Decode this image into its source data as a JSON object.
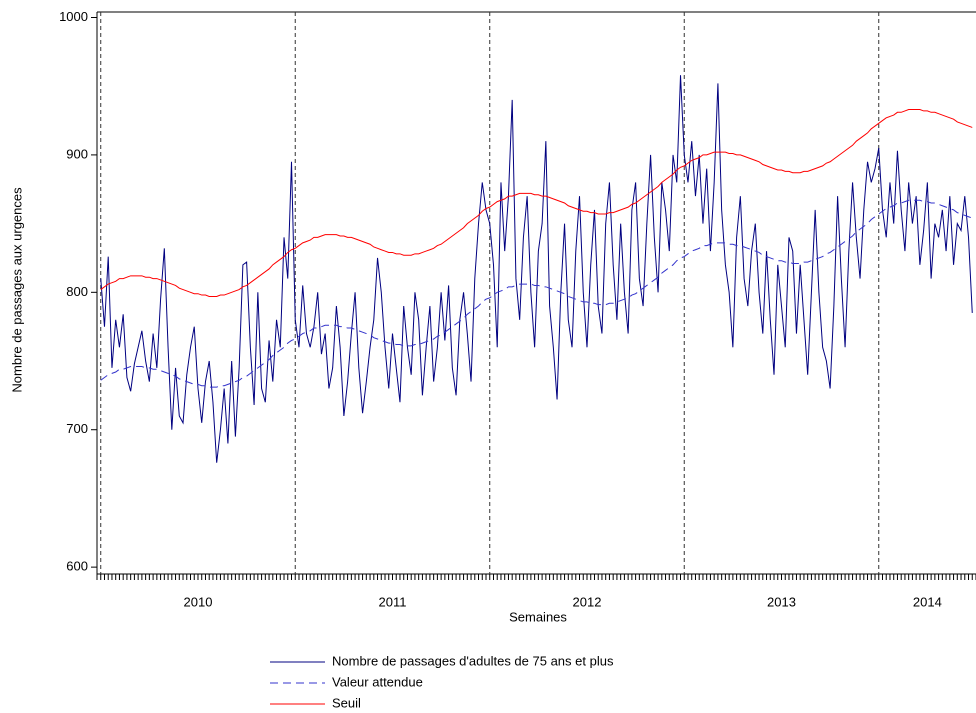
{
  "chart_data": {
    "type": "line",
    "x_label": "Semaines",
    "y_label": "Nombre de passages aux urgences",
    "ylim": [
      595,
      1004
    ],
    "yticks": [
      600,
      700,
      800,
      900,
      1000
    ],
    "xlim": [
      -1,
      234
    ],
    "year_breaks": [
      0,
      52,
      104,
      156,
      208
    ],
    "year_labels": [
      "2010",
      "2011",
      "2012",
      "2013",
      "2014"
    ],
    "series": [
      {
        "name": "Nombre de passages d'adultes de 75 ans et plus",
        "color": "#000080",
        "dash": false,
        "values": [
          810,
          775,
          826,
          745,
          780,
          760,
          784,
          738,
          728,
          748,
          760,
          772,
          750,
          735,
          770,
          745,
          795,
          832,
          760,
          700,
          745,
          710,
          705,
          740,
          760,
          775,
          730,
          705,
          735,
          750,
          720,
          676,
          700,
          730,
          690,
          750,
          695,
          745,
          820,
          822,
          760,
          718,
          800,
          730,
          720,
          765,
          735,
          780,
          760,
          840,
          810,
          895,
          780,
          760,
          805,
          770,
          760,
          775,
          800,
          755,
          770,
          730,
          745,
          790,
          760,
          710,
          735,
          770,
          800,
          745,
          712,
          735,
          760,
          780,
          825,
          800,
          760,
          730,
          770,
          745,
          720,
          790,
          760,
          740,
          800,
          780,
          725,
          760,
          790,
          735,
          760,
          800,
          765,
          805,
          745,
          725,
          780,
          800,
          770,
          735,
          810,
          850,
          880,
          860,
          850,
          820,
          760,
          880,
          830,
          870,
          940,
          810,
          780,
          840,
          870,
          800,
          760,
          830,
          850,
          910,
          790,
          760,
          722,
          800,
          850,
          780,
          760,
          830,
          870,
          800,
          760,
          820,
          860,
          790,
          770,
          850,
          880,
          820,
          780,
          850,
          800,
          770,
          860,
          880,
          810,
          790,
          850,
          900,
          840,
          800,
          880,
          860,
          830,
          900,
          880,
          958,
          900,
          880,
          910,
          870,
          900,
          850,
          890,
          830,
          880,
          952,
          860,
          820,
          800,
          760,
          840,
          870,
          810,
          790,
          830,
          850,
          800,
          770,
          830,
          780,
          740,
          820,
          790,
          760,
          840,
          830,
          770,
          820,
          780,
          740,
          800,
          860,
          800,
          760,
          750,
          730,
          790,
          870,
          810,
          760,
          830,
          880,
          840,
          810,
          860,
          895,
          880,
          890,
          905,
          860,
          840,
          880,
          850,
          903,
          860,
          830,
          880,
          850,
          870,
          820,
          845,
          880,
          810,
          850,
          840,
          860,
          830,
          870,
          820,
          850,
          845,
          870,
          840,
          785
        ]
      },
      {
        "name": "Valeur attendue",
        "color": "#3333cc",
        "dash": true,
        "values": [
          736,
          738,
          740,
          741,
          742,
          744,
          744,
          745,
          746,
          746,
          746,
          746,
          745,
          745,
          744,
          744,
          743,
          742,
          741,
          740,
          739,
          737,
          736,
          735,
          734,
          733,
          733,
          732,
          732,
          731,
          731,
          731,
          732,
          732,
          733,
          734,
          735,
          736,
          738,
          739,
          741,
          743,
          745,
          747,
          749,
          751,
          754,
          756,
          758,
          760,
          763,
          765,
          766,
          768,
          770,
          771,
          772,
          774,
          774,
          775,
          776,
          776,
          776,
          776,
          775,
          775,
          774,
          774,
          773,
          772,
          771,
          770,
          769,
          767,
          766,
          765,
          764,
          763,
          763,
          762,
          762,
          761,
          761,
          761,
          762,
          762,
          763,
          764,
          765,
          766,
          768,
          769,
          771,
          773,
          775,
          777,
          779,
          781,
          784,
          786,
          788,
          790,
          793,
          795,
          796,
          798,
          800,
          801,
          802,
          804,
          804,
          805,
          806,
          806,
          806,
          806,
          805,
          805,
          804,
          804,
          803,
          802,
          801,
          800,
          799,
          797,
          796,
          795,
          794,
          793,
          793,
          792,
          792,
          791,
          791,
          791,
          792,
          792,
          793,
          794,
          795,
          796,
          798,
          799,
          801,
          803,
          805,
          807,
          809,
          811,
          814,
          816,
          818,
          820,
          823,
          825,
          826,
          828,
          830,
          831,
          832,
          834,
          834,
          835,
          836,
          836,
          836,
          836,
          835,
          835,
          834,
          834,
          833,
          832,
          831,
          830,
          829,
          827,
          826,
          825,
          824,
          823,
          823,
          822,
          822,
          821,
          821,
          821,
          822,
          822,
          823,
          824,
          825,
          826,
          828,
          829,
          831,
          833,
          835,
          837,
          839,
          841,
          844,
          846,
          848,
          850,
          853,
          855,
          857,
          859,
          861,
          862,
          863,
          865,
          865,
          866,
          867,
          867,
          867,
          867,
          866,
          866,
          865,
          865,
          864,
          863,
          862,
          861,
          860,
          858,
          857,
          856,
          855,
          854
        ]
      },
      {
        "name": "Seuil",
        "color": "#ff0000",
        "dash": false,
        "values": [
          802,
          804,
          806,
          807,
          808,
          810,
          810,
          811,
          812,
          812,
          812,
          812,
          811,
          811,
          810,
          810,
          809,
          808,
          807,
          806,
          805,
          803,
          802,
          801,
          800,
          799,
          799,
          798,
          798,
          797,
          797,
          797,
          798,
          798,
          799,
          800,
          801,
          802,
          804,
          805,
          807,
          809,
          811,
          813,
          815,
          817,
          820,
          822,
          824,
          826,
          829,
          831,
          832,
          834,
          836,
          837,
          838,
          840,
          840,
          841,
          842,
          842,
          842,
          842,
          841,
          841,
          840,
          840,
          839,
          838,
          837,
          836,
          835,
          833,
          832,
          831,
          830,
          829,
          829,
          828,
          828,
          827,
          827,
          827,
          828,
          828,
          829,
          830,
          831,
          832,
          834,
          835,
          837,
          839,
          841,
          843,
          845,
          847,
          850,
          852,
          854,
          856,
          859,
          861,
          862,
          864,
          866,
          867,
          868,
          870,
          870,
          871,
          872,
          872,
          872,
          872,
          871,
          871,
          870,
          870,
          869,
          868,
          867,
          866,
          865,
          863,
          862,
          861,
          860,
          859,
          859,
          858,
          858,
          857,
          857,
          857,
          858,
          858,
          859,
          860,
          861,
          862,
          864,
          865,
          867,
          869,
          871,
          873,
          875,
          877,
          880,
          882,
          884,
          886,
          889,
          891,
          892,
          894,
          896,
          897,
          898,
          900,
          900,
          901,
          902,
          902,
          902,
          902,
          901,
          901,
          900,
          900,
          899,
          898,
          897,
          896,
          895,
          893,
          892,
          891,
          890,
          889,
          889,
          888,
          888,
          887,
          887,
          887,
          888,
          888,
          889,
          890,
          891,
          892,
          894,
          895,
          897,
          899,
          901,
          903,
          905,
          907,
          910,
          912,
          914,
          916,
          919,
          921,
          923,
          925,
          927,
          928,
          929,
          931,
          931,
          932,
          933,
          933,
          933,
          933,
          932,
          932,
          931,
          931,
          930,
          929,
          928,
          927,
          926,
          924,
          923,
          922,
          921,
          920
        ]
      }
    ]
  }
}
